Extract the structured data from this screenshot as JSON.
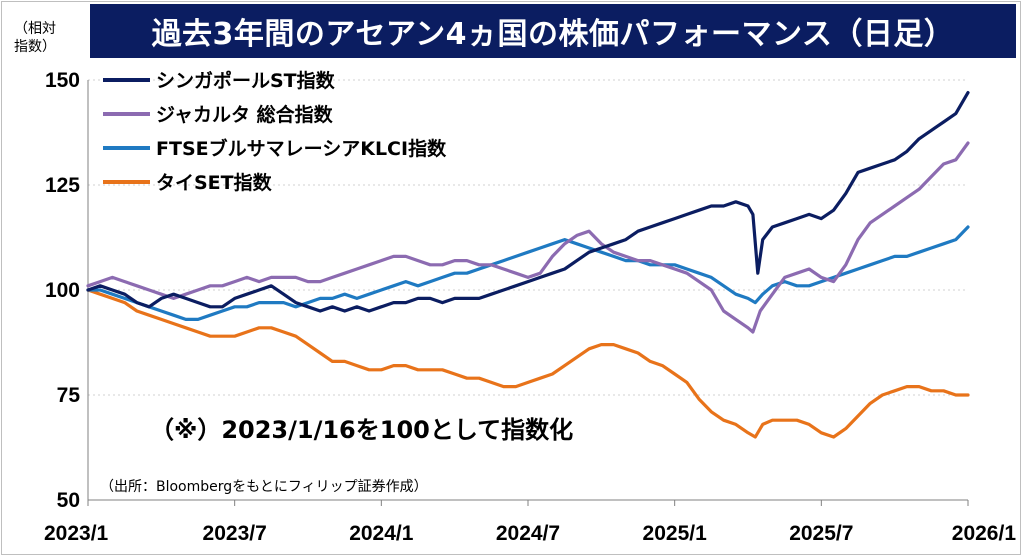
{
  "title": "過去3年間のアセアン4ヵ国の株価パフォーマンス（日足）",
  "unit_label": "（相対\n指数）",
  "note": "（※）2023/1/16を100として指数化",
  "source": "（出所：Bloombergをもとにフィリップ証券作成）",
  "chart_data": {
    "type": "line",
    "title": "過去3年間のアセアン4ヵ国の株価パフォーマンス（日足）",
    "ylabel": "（相対指数）",
    "xlabel": "",
    "ylim": [
      50,
      150
    ],
    "yticks": [
      50,
      75,
      100,
      125,
      150
    ],
    "xlim": [
      0,
      36
    ],
    "xticks": [
      {
        "pos": 0,
        "label": "2023/1"
      },
      {
        "pos": 6,
        "label": "2023/7"
      },
      {
        "pos": 12,
        "label": "2024/1"
      },
      {
        "pos": 18,
        "label": "2024/7"
      },
      {
        "pos": 24,
        "label": "2025/1"
      },
      {
        "pos": 30,
        "label": "2025/7"
      },
      {
        "pos": 36,
        "label": "2026/1"
      }
    ],
    "grid": true,
    "legend_position": "top-left",
    "series": [
      {
        "name": "シンガポールST指数",
        "color": "#0b1d61",
        "points": [
          [
            0,
            100
          ],
          [
            0.5,
            101
          ],
          [
            1,
            100
          ],
          [
            1.5,
            99
          ],
          [
            2,
            97
          ],
          [
            2.5,
            96
          ],
          [
            3,
            98
          ],
          [
            3.5,
            99
          ],
          [
            4,
            98
          ],
          [
            4.5,
            97
          ],
          [
            5,
            96
          ],
          [
            5.5,
            96
          ],
          [
            6,
            98
          ],
          [
            6.5,
            99
          ],
          [
            7,
            100
          ],
          [
            7.5,
            101
          ],
          [
            8,
            99
          ],
          [
            8.5,
            97
          ],
          [
            9,
            96
          ],
          [
            9.5,
            95
          ],
          [
            10,
            96
          ],
          [
            10.5,
            95
          ],
          [
            11,
            96
          ],
          [
            11.5,
            95
          ],
          [
            12,
            96
          ],
          [
            12.5,
            97
          ],
          [
            13,
            97
          ],
          [
            13.5,
            98
          ],
          [
            14,
            98
          ],
          [
            14.5,
            97
          ],
          [
            15,
            98
          ],
          [
            15.5,
            98
          ],
          [
            16,
            98
          ],
          [
            16.5,
            99
          ],
          [
            17,
            100
          ],
          [
            17.5,
            101
          ],
          [
            18,
            102
          ],
          [
            18.5,
            103
          ],
          [
            19,
            104
          ],
          [
            19.5,
            105
          ],
          [
            20,
            107
          ],
          [
            20.5,
            109
          ],
          [
            21,
            110
          ],
          [
            21.5,
            111
          ],
          [
            22,
            112
          ],
          [
            22.5,
            114
          ],
          [
            23,
            115
          ],
          [
            23.5,
            116
          ],
          [
            24,
            117
          ],
          [
            24.5,
            118
          ],
          [
            25,
            119
          ],
          [
            25.5,
            120
          ],
          [
            26,
            120
          ],
          [
            26.5,
            121
          ],
          [
            27,
            120
          ],
          [
            27.2,
            118
          ],
          [
            27.4,
            104
          ],
          [
            27.6,
            112
          ],
          [
            28,
            115
          ],
          [
            28.5,
            116
          ],
          [
            29,
            117
          ],
          [
            29.5,
            118
          ],
          [
            30,
            117
          ],
          [
            30.5,
            119
          ],
          [
            31,
            123
          ],
          [
            31.5,
            128
          ],
          [
            32,
            129
          ],
          [
            32.5,
            130
          ],
          [
            33,
            131
          ],
          [
            33.5,
            133
          ],
          [
            34,
            136
          ],
          [
            34.5,
            138
          ],
          [
            35,
            140
          ],
          [
            35.5,
            142
          ],
          [
            36,
            147
          ]
        ]
      },
      {
        "name": "ジャカルタ 総合指数",
        "color": "#8c6bb1",
        "points": [
          [
            0,
            101
          ],
          [
            0.5,
            102
          ],
          [
            1,
            103
          ],
          [
            1.5,
            102
          ],
          [
            2,
            101
          ],
          [
            2.5,
            100
          ],
          [
            3,
            99
          ],
          [
            3.5,
            98
          ],
          [
            4,
            99
          ],
          [
            4.5,
            100
          ],
          [
            5,
            101
          ],
          [
            5.5,
            101
          ],
          [
            6,
            102
          ],
          [
            6.5,
            103
          ],
          [
            7,
            102
          ],
          [
            7.5,
            103
          ],
          [
            8,
            103
          ],
          [
            8.5,
            103
          ],
          [
            9,
            102
          ],
          [
            9.5,
            102
          ],
          [
            10,
            103
          ],
          [
            10.5,
            104
          ],
          [
            11,
            105
          ],
          [
            11.5,
            106
          ],
          [
            12,
            107
          ],
          [
            12.5,
            108
          ],
          [
            13,
            108
          ],
          [
            13.5,
            107
          ],
          [
            14,
            106
          ],
          [
            14.5,
            106
          ],
          [
            15,
            107
          ],
          [
            15.5,
            107
          ],
          [
            16,
            106
          ],
          [
            16.5,
            106
          ],
          [
            17,
            105
          ],
          [
            17.5,
            104
          ],
          [
            18,
            103
          ],
          [
            18.5,
            104
          ],
          [
            19,
            108
          ],
          [
            19.5,
            111
          ],
          [
            20,
            113
          ],
          [
            20.5,
            114
          ],
          [
            21,
            111
          ],
          [
            21.5,
            109
          ],
          [
            22,
            108
          ],
          [
            22.5,
            107
          ],
          [
            23,
            107
          ],
          [
            23.5,
            106
          ],
          [
            24,
            105
          ],
          [
            24.5,
            104
          ],
          [
            25,
            102
          ],
          [
            25.5,
            100
          ],
          [
            26,
            95
          ],
          [
            26.5,
            93
          ],
          [
            27,
            91
          ],
          [
            27.2,
            90
          ],
          [
            27.5,
            95
          ],
          [
            28,
            99
          ],
          [
            28.5,
            103
          ],
          [
            29,
            104
          ],
          [
            29.5,
            105
          ],
          [
            30,
            103
          ],
          [
            30.5,
            102
          ],
          [
            31,
            106
          ],
          [
            31.5,
            112
          ],
          [
            32,
            116
          ],
          [
            32.5,
            118
          ],
          [
            33,
            120
          ],
          [
            33.5,
            122
          ],
          [
            34,
            124
          ],
          [
            34.5,
            127
          ],
          [
            35,
            130
          ],
          [
            35.5,
            131
          ],
          [
            36,
            135
          ]
        ]
      },
      {
        "name": "FTSEブルサマレーシアKLCI指数",
        "color": "#1f7ac2",
        "points": [
          [
            0,
            100
          ],
          [
            0.5,
            100
          ],
          [
            1,
            99
          ],
          [
            1.5,
            98
          ],
          [
            2,
            97
          ],
          [
            2.5,
            96
          ],
          [
            3,
            95
          ],
          [
            3.5,
            94
          ],
          [
            4,
            93
          ],
          [
            4.5,
            93
          ],
          [
            5,
            94
          ],
          [
            5.5,
            95
          ],
          [
            6,
            96
          ],
          [
            6.5,
            96
          ],
          [
            7,
            97
          ],
          [
            7.5,
            97
          ],
          [
            8,
            97
          ],
          [
            8.5,
            96
          ],
          [
            9,
            97
          ],
          [
            9.5,
            98
          ],
          [
            10,
            98
          ],
          [
            10.5,
            99
          ],
          [
            11,
            98
          ],
          [
            11.5,
            99
          ],
          [
            12,
            100
          ],
          [
            12.5,
            101
          ],
          [
            13,
            102
          ],
          [
            13.5,
            101
          ],
          [
            14,
            102
          ],
          [
            14.5,
            103
          ],
          [
            15,
            104
          ],
          [
            15.5,
            104
          ],
          [
            16,
            105
          ],
          [
            16.5,
            106
          ],
          [
            17,
            107
          ],
          [
            17.5,
            108
          ],
          [
            18,
            109
          ],
          [
            18.5,
            110
          ],
          [
            19,
            111
          ],
          [
            19.5,
            112
          ],
          [
            20,
            111
          ],
          [
            20.5,
            110
          ],
          [
            21,
            109
          ],
          [
            21.5,
            108
          ],
          [
            22,
            107
          ],
          [
            22.5,
            107
          ],
          [
            23,
            106
          ],
          [
            23.5,
            106
          ],
          [
            24,
            106
          ],
          [
            24.5,
            105
          ],
          [
            25,
            104
          ],
          [
            25.5,
            103
          ],
          [
            26,
            101
          ],
          [
            26.5,
            99
          ],
          [
            27,
            98
          ],
          [
            27.3,
            97
          ],
          [
            27.6,
            99
          ],
          [
            28,
            101
          ],
          [
            28.5,
            102
          ],
          [
            29,
            101
          ],
          [
            29.5,
            101
          ],
          [
            30,
            102
          ],
          [
            30.5,
            103
          ],
          [
            31,
            104
          ],
          [
            31.5,
            105
          ],
          [
            32,
            106
          ],
          [
            32.5,
            107
          ],
          [
            33,
            108
          ],
          [
            33.5,
            108
          ],
          [
            34,
            109
          ],
          [
            34.5,
            110
          ],
          [
            35,
            111
          ],
          [
            35.5,
            112
          ],
          [
            36,
            115
          ]
        ]
      },
      {
        "name": "タイSET指数",
        "color": "#e8731a",
        "points": [
          [
            0,
            100
          ],
          [
            0.5,
            99
          ],
          [
            1,
            98
          ],
          [
            1.5,
            97
          ],
          [
            2,
            95
          ],
          [
            2.5,
            94
          ],
          [
            3,
            93
          ],
          [
            3.5,
            92
          ],
          [
            4,
            91
          ],
          [
            4.5,
            90
          ],
          [
            5,
            89
          ],
          [
            5.5,
            89
          ],
          [
            6,
            89
          ],
          [
            6.5,
            90
          ],
          [
            7,
            91
          ],
          [
            7.5,
            91
          ],
          [
            8,
            90
          ],
          [
            8.5,
            89
          ],
          [
            9,
            87
          ],
          [
            9.5,
            85
          ],
          [
            10,
            83
          ],
          [
            10.5,
            83
          ],
          [
            11,
            82
          ],
          [
            11.5,
            81
          ],
          [
            12,
            81
          ],
          [
            12.5,
            82
          ],
          [
            13,
            82
          ],
          [
            13.5,
            81
          ],
          [
            14,
            81
          ],
          [
            14.5,
            81
          ],
          [
            15,
            80
          ],
          [
            15.5,
            79
          ],
          [
            16,
            79
          ],
          [
            16.5,
            78
          ],
          [
            17,
            77
          ],
          [
            17.5,
            77
          ],
          [
            18,
            78
          ],
          [
            18.5,
            79
          ],
          [
            19,
            80
          ],
          [
            19.5,
            82
          ],
          [
            20,
            84
          ],
          [
            20.5,
            86
          ],
          [
            21,
            87
          ],
          [
            21.5,
            87
          ],
          [
            22,
            86
          ],
          [
            22.5,
            85
          ],
          [
            23,
            83
          ],
          [
            23.5,
            82
          ],
          [
            24,
            80
          ],
          [
            24.5,
            78
          ],
          [
            25,
            74
          ],
          [
            25.5,
            71
          ],
          [
            26,
            69
          ],
          [
            26.5,
            68
          ],
          [
            27,
            66
          ],
          [
            27.3,
            65
          ],
          [
            27.6,
            68
          ],
          [
            28,
            69
          ],
          [
            28.5,
            69
          ],
          [
            29,
            69
          ],
          [
            29.5,
            68
          ],
          [
            30,
            66
          ],
          [
            30.5,
            65
          ],
          [
            31,
            67
          ],
          [
            31.5,
            70
          ],
          [
            32,
            73
          ],
          [
            32.5,
            75
          ],
          [
            33,
            76
          ],
          [
            33.5,
            77
          ],
          [
            34,
            77
          ],
          [
            34.5,
            76
          ],
          [
            35,
            76
          ],
          [
            35.5,
            75
          ],
          [
            36,
            75
          ]
        ]
      }
    ]
  }
}
